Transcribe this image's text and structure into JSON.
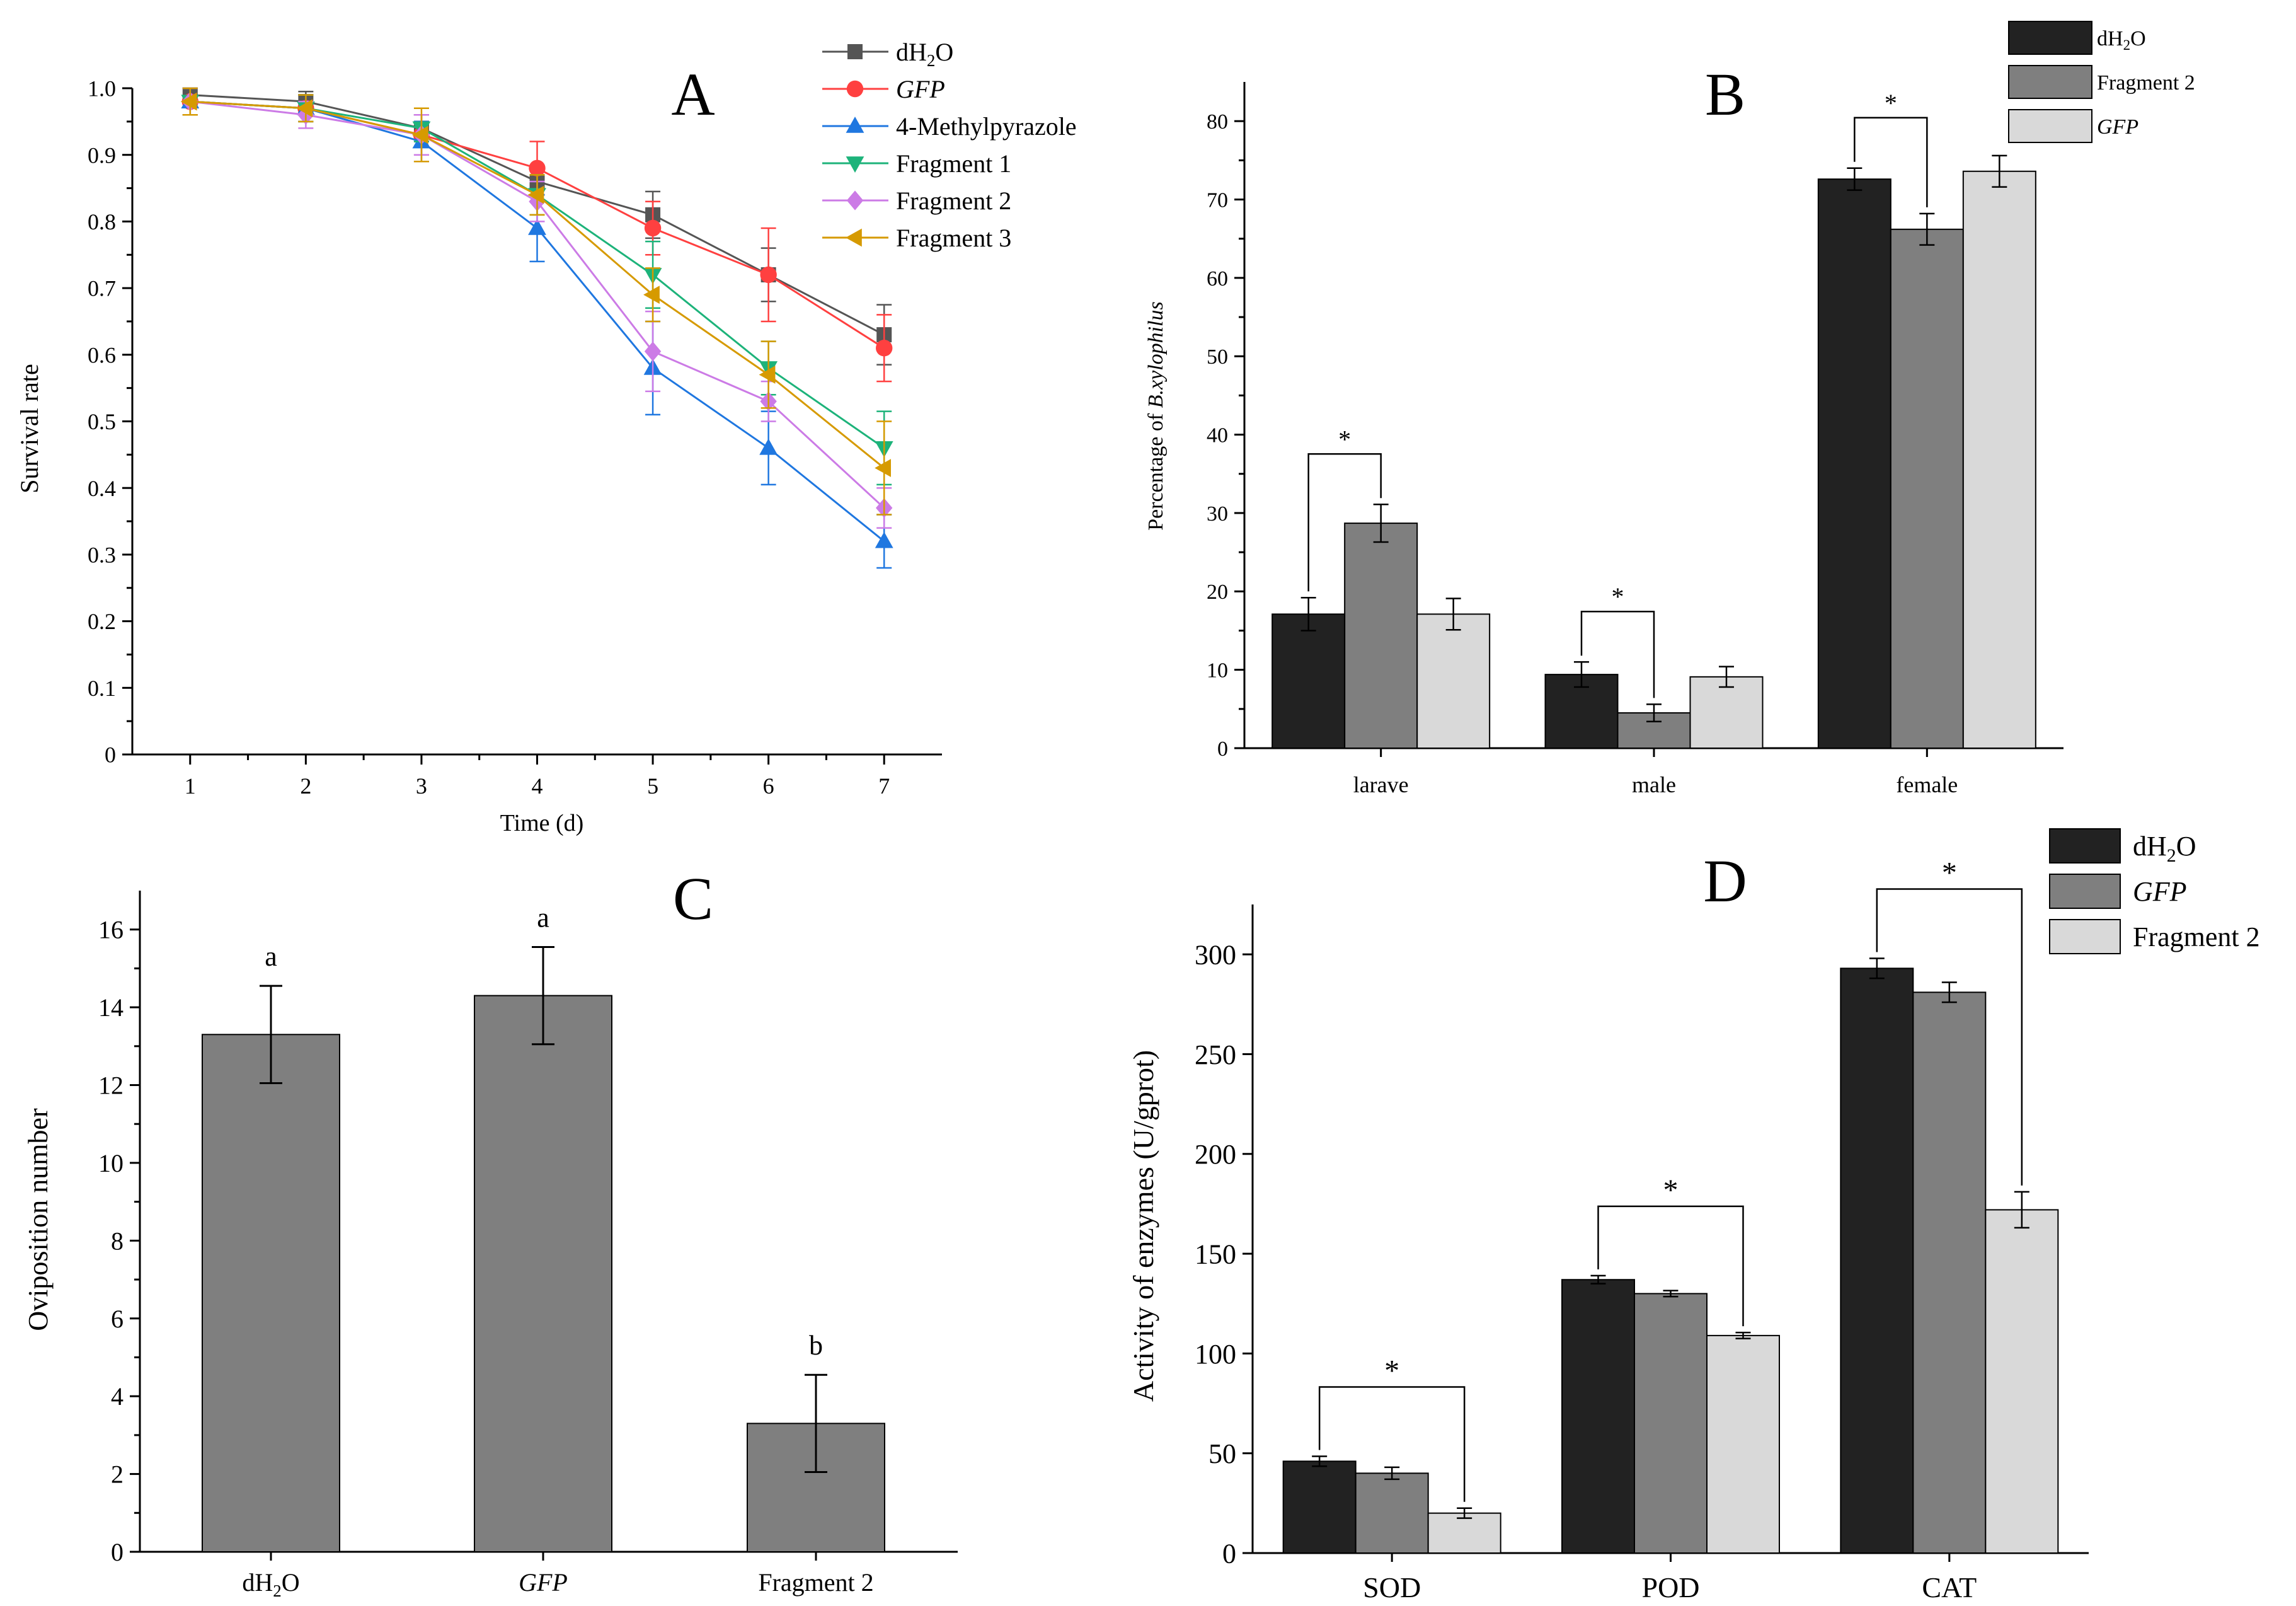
{
  "chart_data": [
    {
      "panel": "A",
      "type": "line",
      "xlabel": "Time (d)",
      "ylabel": "Survival rate",
      "ylim": [
        0,
        1.0
      ],
      "yticks": [
        0,
        0.1,
        0.2,
        0.3,
        0.4,
        0.5,
        0.6,
        0.7,
        0.8,
        0.9,
        1.0
      ],
      "ytick_labels": [
        "0",
        "0.1",
        "0.2",
        "0.3",
        "0.4",
        "0.5",
        "0.6",
        "0.7",
        "0.8",
        "0.9",
        "1.0"
      ],
      "x": [
        1,
        2,
        3,
        4,
        5,
        6,
        7
      ],
      "xlim": [
        0.5,
        7.5
      ],
      "legend_position": "top-right",
      "series": [
        {
          "name_parts": [
            "dH",
            "2",
            "O"
          ],
          "label": "dH2O",
          "italic": false,
          "color": "#555555",
          "marker": "square",
          "values": [
            0.99,
            0.98,
            0.94,
            0.86,
            0.81,
            0.72,
            0.63
          ],
          "errors": [
            0.01,
            0.015,
            0.02,
            0.02,
            0.035,
            0.04,
            0.045
          ]
        },
        {
          "name_parts": [
            "GFP"
          ],
          "label": "GFP",
          "italic": true,
          "color": "#ff4040",
          "marker": "circle",
          "values": [
            0.98,
            0.97,
            0.93,
            0.88,
            0.79,
            0.72,
            0.61
          ],
          "errors": [
            0.02,
            0.02,
            0.03,
            0.04,
            0.04,
            0.07,
            0.05
          ]
        },
        {
          "name_parts": [
            "4-Methylpyrazole"
          ],
          "label": "4-Methylpyrazole",
          "italic": false,
          "color": "#1f77e0",
          "marker": "triangle-up",
          "values": [
            0.98,
            0.97,
            0.92,
            0.79,
            0.58,
            0.46,
            0.32
          ],
          "errors": [
            0.02,
            0.02,
            0.03,
            0.05,
            0.07,
            0.055,
            0.04
          ]
        },
        {
          "name_parts": [
            "Fragment 1"
          ],
          "label": "Fragment 1",
          "italic": false,
          "color": "#1db37a",
          "marker": "triangle-down",
          "values": [
            0.98,
            0.97,
            0.94,
            0.84,
            0.72,
            0.58,
            0.46
          ],
          "errors": [
            0.02,
            0.02,
            0.02,
            0.03,
            0.05,
            0.04,
            0.055
          ]
        },
        {
          "name_parts": [
            "Fragment 2"
          ],
          "label": "Fragment 2",
          "italic": false,
          "color": "#cc7be6",
          "marker": "diamond",
          "values": [
            0.98,
            0.96,
            0.93,
            0.83,
            0.605,
            0.53,
            0.37
          ],
          "errors": [
            0.02,
            0.02,
            0.03,
            0.03,
            0.06,
            0.03,
            0.03
          ]
        },
        {
          "name_parts": [
            "Fragment 3"
          ],
          "label": "Fragment 3",
          "italic": false,
          "color": "#d69a00",
          "marker": "triangle-left",
          "values": [
            0.98,
            0.97,
            0.93,
            0.84,
            0.69,
            0.57,
            0.43
          ],
          "errors": [
            0.02,
            0.02,
            0.04,
            0.03,
            0.04,
            0.05,
            0.07
          ]
        }
      ]
    },
    {
      "panel": "B",
      "type": "bar",
      "ylabel_prefix": "Percentage of ",
      "ylabel_italic": "B.xylophilus",
      "ylim": [
        0,
        85
      ],
      "yticks": [
        0,
        10,
        20,
        30,
        40,
        50,
        60,
        70,
        80
      ],
      "ytick_labels": [
        "0",
        "10",
        "20",
        "30",
        "40",
        "50",
        "60",
        "70",
        "80"
      ],
      "categories": [
        "larave",
        "male",
        "female"
      ],
      "legend_position": "top-right",
      "series": [
        {
          "name_parts": [
            "dH",
            "2",
            "O"
          ],
          "label": "dH2O",
          "italic": false,
          "color": "#222222",
          "values": [
            17.1,
            9.4,
            72.6
          ],
          "errors": [
            2.1,
            1.6,
            1.4
          ]
        },
        {
          "name_parts": [
            "Fragment 2"
          ],
          "label": "Fragment 2",
          "italic": false,
          "color": "#7f7f7f",
          "values": [
            28.7,
            4.5,
            66.2
          ],
          "errors": [
            2.4,
            1.1,
            2.0
          ]
        },
        {
          "name_parts": [
            "GFP"
          ],
          "label": "GFP",
          "italic": true,
          "color": "#d9d9d9",
          "values": [
            17.1,
            9.1,
            73.6
          ],
          "errors": [
            2.0,
            1.3,
            2.0
          ]
        }
      ],
      "annotations": [
        {
          "text": "*",
          "category": 0,
          "from_series": 0,
          "to_series": 1
        },
        {
          "text": "*",
          "category": 1,
          "from_series": 0,
          "to_series": 1
        },
        {
          "text": "*",
          "category": 2,
          "from_series": 0,
          "to_series": 1
        }
      ]
    },
    {
      "panel": "C",
      "type": "bar",
      "ylabel": "Oviposition number",
      "ylim": [
        0,
        17
      ],
      "yticks": [
        0,
        2,
        4,
        6,
        8,
        10,
        12,
        14,
        16
      ],
      "ytick_labels": [
        "0",
        "2",
        "4",
        "6",
        "8",
        "10",
        "12",
        "14",
        "16"
      ],
      "categories": [
        {
          "parts": [
            "dH",
            "2",
            "O"
          ],
          "italic": false,
          "text": "dH2O"
        },
        {
          "parts": [
            "GFP"
          ],
          "italic": true,
          "text": "GFP"
        },
        {
          "parts": [
            "Fragment 2"
          ],
          "italic": false,
          "text": "Fragment 2"
        }
      ],
      "color": "#7f7f7f",
      "values": [
        13.3,
        14.3,
        3.3
      ],
      "errors": [
        1.25,
        1.25,
        1.25
      ],
      "letters": [
        "a",
        "a",
        "b"
      ]
    },
    {
      "panel": "D",
      "type": "bar",
      "ylabel": "Activity of enzymes (U/gprot)",
      "ylim": [
        0,
        325
      ],
      "yticks": [
        0,
        50,
        100,
        150,
        200,
        250,
        300
      ],
      "ytick_labels": [
        "0",
        "50",
        "100",
        "150",
        "200",
        "250",
        "300"
      ],
      "categories": [
        "SOD",
        "POD",
        "CAT"
      ],
      "legend_position": "top-right",
      "series": [
        {
          "name_parts": [
            "dH",
            "2",
            "O"
          ],
          "label": "dH2O",
          "italic": false,
          "color": "#222222",
          "values": [
            46,
            137,
            293
          ],
          "errors": [
            2.5,
            2.0,
            5.0
          ]
        },
        {
          "name_parts": [
            "GFP"
          ],
          "label": "GFP",
          "italic": true,
          "color": "#7f7f7f",
          "values": [
            40,
            130,
            281
          ],
          "errors": [
            3.0,
            1.5,
            5.0
          ]
        },
        {
          "name_parts": [
            "Fragment 2"
          ],
          "label": "Fragment 2",
          "italic": false,
          "color": "#d9d9d9",
          "values": [
            20,
            109,
            172
          ],
          "errors": [
            2.5,
            1.5,
            9.0
          ]
        }
      ],
      "annotations": [
        {
          "text": "*",
          "category": 0,
          "from_series": 0,
          "to_series": 2
        },
        {
          "text": "*",
          "category": 1,
          "from_series": 0,
          "to_series": 2
        },
        {
          "text": "*",
          "category": 2,
          "from_series": 0,
          "to_series": 2
        }
      ]
    }
  ]
}
